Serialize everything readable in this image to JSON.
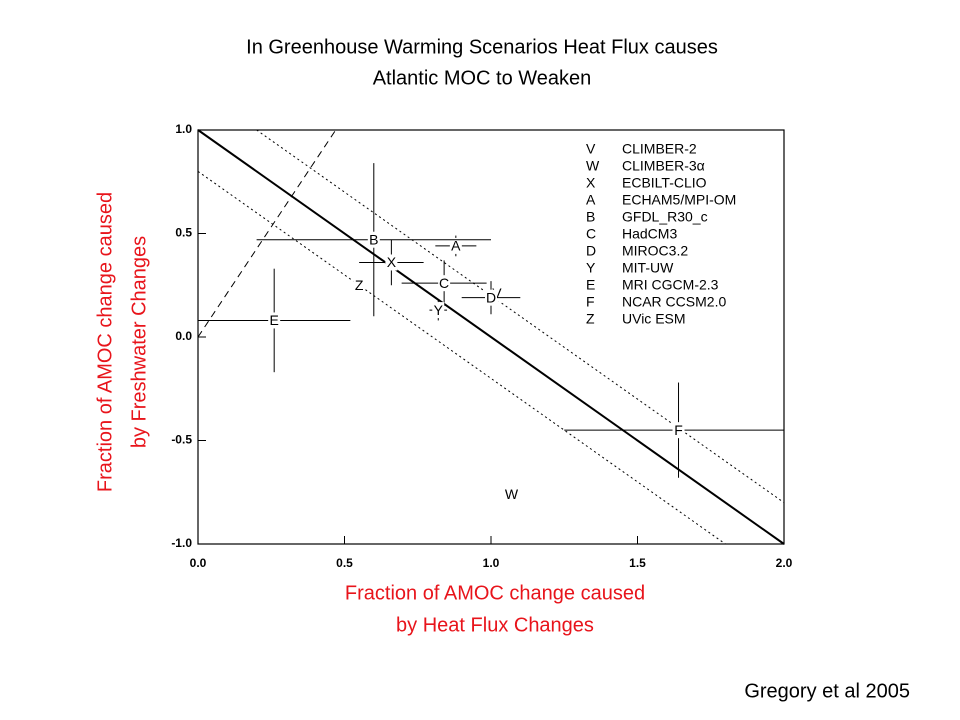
{
  "chart_data": {
    "type": "scatter",
    "title": [
      "In Greenhouse Warming Scenarios Heat Flux causes",
      "Atlantic MOC to Weaken"
    ],
    "xlabel": [
      "Fraction of AMOC change caused",
      "by Heat Flux Changes"
    ],
    "ylabel": [
      "Fraction of AMOC change caused",
      "by Freshwater Changes"
    ],
    "credit": "Gregory et al 2005",
    "xlim": [
      0,
      2
    ],
    "ylim": [
      -1,
      1
    ],
    "xticks": [
      {
        "value": 0,
        "label": "0.0"
      },
      {
        "value": 0.5,
        "label": "0.5"
      },
      {
        "value": 1,
        "label": "1.0"
      },
      {
        "value": 1.5,
        "label": "1.5"
      },
      {
        "value": 2,
        "label": "2.0"
      }
    ],
    "yticks": [
      {
        "value": -1,
        "label": "-1.0"
      },
      {
        "value": -0.5,
        "label": "-0.5"
      },
      {
        "value": 0,
        "label": "0.0"
      },
      {
        "value": 0.5,
        "label": "0.5"
      },
      {
        "value": 1,
        "label": "1.0"
      }
    ],
    "reference_lines": [
      {
        "style": "solid",
        "x": [
          0,
          2
        ],
        "y": [
          1,
          -1
        ]
      },
      {
        "style": "dotted",
        "x": [
          0.2,
          2
        ],
        "y": [
          1,
          -0.8
        ]
      },
      {
        "style": "dotted",
        "x": [
          0,
          1.8
        ],
        "y": [
          0.8,
          -1
        ]
      },
      {
        "style": "dashed",
        "x": [
          0,
          0.47
        ],
        "y": [
          0,
          1
        ]
      }
    ],
    "points": [
      {
        "label": "V",
        "model": "CLIMBER-2",
        "x": 1.02,
        "y": 0.21,
        "xerr": null,
        "yerr": null
      },
      {
        "label": "W",
        "model": "CLIMBER-3α",
        "x": 1.07,
        "y": -0.76,
        "xerr": null,
        "yerr": null
      },
      {
        "label": "X",
        "model": "ECBILT-CLIO",
        "x": 0.66,
        "y": 0.36,
        "xerr": 0.11,
        "yerr": 0.11
      },
      {
        "label": "A",
        "model": "ECHAM5/MPI-OM",
        "x": 0.88,
        "y": 0.44,
        "xerr": 0.07,
        "yerr": 0.05
      },
      {
        "label": "B",
        "model": "GFDL_R30_c",
        "x": 0.6,
        "y": 0.47,
        "xerr": 0.4,
        "yerr": 0.37
      },
      {
        "label": "C",
        "model": "HadCM3",
        "x": 0.84,
        "y": 0.26,
        "xerr": 0.145,
        "yerr": 0.11
      },
      {
        "label": "D",
        "model": "MIROC3.2",
        "x": 1.0,
        "y": 0.19,
        "xerr": 0.1,
        "yerr": 0.08
      },
      {
        "label": "Y",
        "model": "MIT-UW",
        "x": 0.82,
        "y": 0.13,
        "xerr": 0.03,
        "yerr": 0.05
      },
      {
        "label": "E",
        "model": "MRI CGCM-2.3",
        "x": 0.26,
        "y": 0.08,
        "xerr": 0.26,
        "yerr": 0.25
      },
      {
        "label": "F",
        "model": "NCAR CCSM2.0",
        "x": 1.64,
        "y": -0.45,
        "xerr": 0.39,
        "yerr": 0.23
      },
      {
        "label": "Z",
        "model": "UVic ESM",
        "x": 0.55,
        "y": 0.25,
        "xerr": null,
        "yerr": null
      }
    ]
  }
}
